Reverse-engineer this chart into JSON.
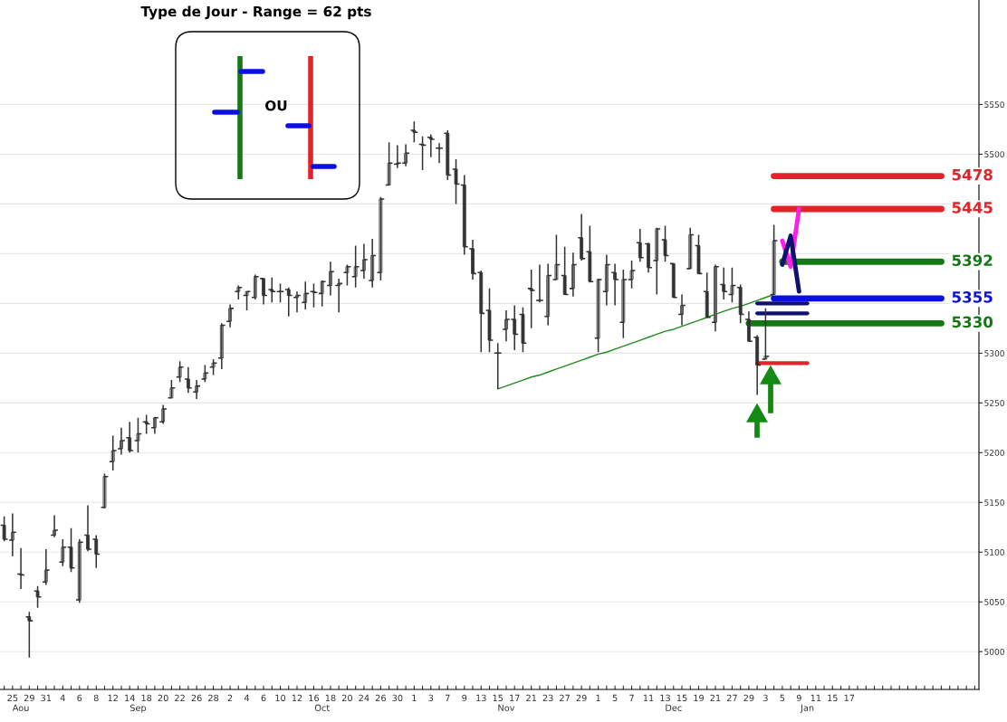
{
  "chart_data": {
    "type": "candlestick",
    "title": "Type de Jour - Range = 62 pts",
    "color": "#333333",
    "categories": [
      null,
      "25",
      "\nAou",
      "29",
      null,
      "31",
      null,
      "4",
      null,
      "6",
      null,
      "8",
      null,
      "12",
      null,
      "14",
      "\nSep",
      "18",
      null,
      "20",
      null,
      "22",
      null,
      "26",
      null,
      "28",
      null,
      "2",
      null,
      "4",
      null,
      "6",
      null,
      "10",
      null,
      "12",
      null,
      "16",
      "\nOct",
      "18",
      null,
      "20",
      null,
      "24",
      null,
      "26",
      null,
      "30",
      null,
      "1",
      null,
      "3",
      null,
      "7",
      null,
      "9",
      null,
      "13",
      null,
      "15",
      "\nNov",
      "17",
      null,
      "21",
      null,
      "23",
      null,
      "27",
      null,
      "29",
      null,
      "1",
      null,
      "5",
      null,
      "7",
      null,
      "11",
      null,
      "13",
      "\nDec",
      "15",
      null,
      "19",
      null,
      "21",
      null,
      "27",
      null,
      "29",
      null,
      "3",
      null,
      "5",
      null,
      "9",
      "\nJan",
      "11",
      null,
      "15",
      null,
      "17",
      null,
      null,
      null,
      null,
      null,
      null,
      null,
      null,
      null,
      null,
      null,
      null,
      null,
      null,
      null
    ],
    "ohlc": [
      [
        5127,
        5136,
        5111,
        5113
      ],
      [
        5112,
        5139,
        5096,
        5120
      ],
      [
        5078,
        5104,
        5063,
        5077
      ],
      [
        5035,
        5040,
        4994,
        5031
      ],
      [
        5061,
        5066,
        5044,
        5055
      ],
      [
        5070,
        5103,
        5067,
        5082
      ],
      [
        5117,
        5137,
        5115,
        5122
      ],
      [
        5090,
        5113,
        5086,
        5105
      ],
      [
        5105,
        5124,
        5080,
        5084
      ],
      [
        5052,
        5113,
        5049,
        5110
      ],
      [
        5117,
        5147,
        5101,
        5103
      ],
      [
        5113,
        5117,
        5084,
        5098
      ],
      [
        5145,
        5179,
        5144,
        5176
      ],
      [
        5191,
        5217,
        5182,
        5202
      ],
      [
        5204,
        5225,
        5198,
        5212
      ],
      [
        5215,
        5231,
        5200,
        5202
      ],
      [
        5212,
        5235,
        5200,
        5219
      ],
      [
        5231,
        5238,
        5219,
        5229
      ],
      [
        5225,
        5236,
        5219,
        5235
      ],
      [
        5231,
        5248,
        5229,
        5244
      ],
      [
        5255,
        5273,
        5255,
        5265
      ],
      [
        5276,
        5292,
        5271,
        5286
      ],
      [
        5274,
        5286,
        5260,
        5265
      ],
      [
        5261,
        5273,
        5254,
        5267
      ],
      [
        5274,
        5288,
        5271,
        5280
      ],
      [
        5286,
        5294,
        5278,
        5290
      ],
      [
        5295,
        5330,
        5284,
        5328
      ],
      [
        5332,
        5349,
        5326,
        5345
      ],
      [
        5362,
        5368,
        5354,
        5366
      ],
      [
        5358,
        5362,
        5343,
        5362
      ],
      [
        5356,
        5379,
        5354,
        5377
      ],
      [
        5375,
        5375,
        5349,
        5358
      ],
      [
        5364,
        5376,
        5351,
        5362
      ],
      [
        5362,
        5370,
        5351,
        5362
      ],
      [
        5364,
        5366,
        5337,
        5358
      ],
      [
        5356,
        5362,
        5341,
        5358
      ],
      [
        5351,
        5372,
        5344,
        5360
      ],
      [
        5362,
        5370,
        5346,
        5361
      ],
      [
        5360,
        5373,
        5347,
        5372
      ],
      [
        5368,
        5392,
        5358,
        5382
      ],
      [
        5368,
        5375,
        5341,
        5370
      ],
      [
        5381,
        5389,
        5368,
        5387
      ],
      [
        5377,
        5408,
        5366,
        5387
      ],
      [
        5383,
        5410,
        5375,
        5394
      ],
      [
        5373,
        5415,
        5366,
        5398
      ],
      [
        5381,
        5457,
        5373,
        5455
      ],
      [
        5469,
        5512,
        5469,
        5491
      ],
      [
        5490,
        5509,
        5486,
        5491
      ],
      [
        5491,
        5510,
        5488,
        5501
      ],
      [
        5524,
        5533,
        5512,
        5522
      ],
      [
        5510,
        5518,
        5484,
        5509
      ],
      [
        5517,
        5520,
        5497,
        5515
      ],
      [
        5506,
        5511,
        5491,
        5506
      ],
      [
        5521,
        5524,
        5474,
        5479
      ],
      [
        5485,
        5495,
        5450,
        5470
      ],
      [
        5469,
        5479,
        5399,
        5407
      ],
      [
        5405,
        5414,
        5374,
        5380
      ],
      [
        5381,
        5383,
        5301,
        5340
      ],
      [
        5343,
        5365,
        5301,
        5313
      ],
      [
        5300,
        5310,
        5264,
        5300
      ],
      [
        5324,
        5343,
        5312,
        5334
      ],
      [
        5334,
        5348,
        5303,
        5319
      ],
      [
        5339,
        5346,
        5301,
        5310
      ],
      [
        5365,
        5384,
        5325,
        5363
      ],
      [
        5353,
        5389,
        5351,
        5353
      ],
      [
        5337,
        5390,
        5328,
        5378
      ],
      [
        5374,
        5419,
        5374,
        5389
      ],
      [
        5378,
        5407,
        5359,
        5359
      ],
      [
        5365,
        5401,
        5357,
        5389
      ],
      [
        5416,
        5440,
        5393,
        5395
      ],
      [
        5402,
        5428,
        5371,
        5372
      ],
      [
        5315,
        5375,
        5301,
        5374
      ],
      [
        5362,
        5399,
        5348,
        5389
      ],
      [
        5381,
        5390,
        5348,
        5374
      ],
      [
        5331,
        5384,
        5315,
        5374
      ],
      [
        5374,
        5393,
        5365,
        5383
      ],
      [
        5411,
        5425,
        5392,
        5396
      ],
      [
        5410,
        5411,
        5381,
        5386
      ],
      [
        5393,
        5426,
        5359,
        5425
      ],
      [
        5414,
        5428,
        5392,
        5398
      ],
      [
        5390,
        5390,
        5356,
        5356
      ],
      [
        5339,
        5359,
        5328,
        5348
      ],
      [
        5385,
        5426,
        5385,
        5419
      ],
      [
        5408,
        5419,
        5380,
        5380
      ],
      [
        5362,
        5381,
        5336,
        5336
      ],
      [
        5331,
        5389,
        5322,
        5387
      ],
      [
        5369,
        5386,
        5354,
        5362
      ],
      [
        5359,
        5386,
        5351,
        5368
      ],
      [
        5366,
        5369,
        5330,
        5339
      ],
      [
        5334,
        5342,
        5312,
        5312
      ],
      [
        5316,
        5318,
        5258,
        5288
      ],
      [
        5294,
        5345,
        5294,
        5297
      ],
      [
        5359,
        5429,
        5359,
        5413
      ],
      null,
      null,
      null,
      null,
      null,
      null,
      null,
      null,
      null,
      null,
      null,
      null,
      null,
      null,
      null,
      null,
      null,
      null,
      null,
      null,
      null,
      null,
      null,
      null
    ],
    "ylim": [
      4962,
      5655
    ],
    "yticks": [
      5000,
      5050,
      5100,
      5150,
      5200,
      5250,
      5300,
      {
        "value": 5350,
        "label": null
      },
      {
        "value": 5400,
        "label": null
      },
      {
        "value": 5450,
        "label": null
      },
      5500,
      5550
    ],
    "grid": "y",
    "series": [
      {
        "type": "line",
        "color": "#1e8c1e",
        "values": [
          null,
          null,
          null,
          null,
          null,
          null,
          null,
          null,
          null,
          null,
          null,
          null,
          null,
          null,
          null,
          null,
          null,
          null,
          null,
          null,
          null,
          null,
          null,
          null,
          null,
          null,
          null,
          null,
          null,
          null,
          null,
          null,
          null,
          null,
          null,
          null,
          null,
          null,
          null,
          null,
          null,
          null,
          null,
          null,
          null,
          null,
          null,
          null,
          null,
          null,
          null,
          null,
          null,
          null,
          null,
          null,
          null,
          null,
          null,
          5264,
          5267,
          5270,
          5273,
          5276,
          5278,
          5281,
          5284,
          5287,
          5290,
          5293,
          5296,
          5299,
          5301,
          5304,
          5307,
          5310,
          5313,
          5316,
          5319,
          5322,
          5324,
          5327,
          5330,
          5333,
          5336,
          5339,
          5342,
          5345,
          5347,
          5350,
          5353,
          5356,
          5359,
          null,
          null,
          null,
          null,
          null,
          null,
          null,
          null,
          null,
          null,
          null,
          null,
          null,
          null,
          null,
          null,
          null,
          null,
          null,
          null,
          null,
          null,
          null,
          null
        ]
      },
      {
        "type": "line",
        "name": "5478",
        "color": "#e2232a",
        "values": [
          null,
          null,
          null,
          null,
          null,
          null,
          null,
          null,
          null,
          null,
          null,
          null,
          null,
          null,
          null,
          null,
          null,
          null,
          null,
          null,
          null,
          null,
          null,
          null,
          null,
          null,
          null,
          null,
          null,
          null,
          null,
          null,
          null,
          null,
          null,
          null,
          null,
          null,
          null,
          null,
          null,
          null,
          null,
          null,
          null,
          null,
          null,
          null,
          null,
          null,
          null,
          null,
          null,
          null,
          null,
          null,
          null,
          null,
          null,
          null,
          null,
          null,
          null,
          null,
          null,
          null,
          null,
          null,
          null,
          null,
          null,
          null,
          null,
          null,
          null,
          null,
          null,
          null,
          null,
          null,
          null,
          null,
          null,
          null,
          null,
          null,
          null,
          null,
          null,
          null,
          null,
          null,
          5478,
          5478,
          5478,
          5478,
          5478,
          5478,
          5478,
          5478,
          5478,
          5478,
          5478,
          5478,
          5478,
          5478,
          5478,
          5478,
          5478,
          5478,
          5478,
          5478,
          5478,
          null,
          null,
          null,
          null
        ]
      },
      {
        "type": "line",
        "name": "5445",
        "color": "#e2232a",
        "values": [
          null,
          null,
          null,
          null,
          null,
          null,
          null,
          null,
          null,
          null,
          null,
          null,
          null,
          null,
          null,
          null,
          null,
          null,
          null,
          null,
          null,
          null,
          null,
          null,
          null,
          null,
          null,
          null,
          null,
          null,
          null,
          null,
          null,
          null,
          null,
          null,
          null,
          null,
          null,
          null,
          null,
          null,
          null,
          null,
          null,
          null,
          null,
          null,
          null,
          null,
          null,
          null,
          null,
          null,
          null,
          null,
          null,
          null,
          null,
          null,
          null,
          null,
          null,
          null,
          null,
          null,
          null,
          null,
          null,
          null,
          null,
          null,
          null,
          null,
          null,
          null,
          null,
          null,
          null,
          null,
          null,
          null,
          null,
          null,
          null,
          null,
          null,
          null,
          null,
          null,
          null,
          null,
          5445,
          5445,
          5445,
          5445,
          5445,
          5445,
          5445,
          5445,
          5445,
          5445,
          5445,
          5445,
          5445,
          5445,
          5445,
          5445,
          5445,
          5445,
          5445,
          5445,
          5445,
          null,
          null,
          null,
          null
        ]
      },
      {
        "type": "line",
        "name": "5392",
        "color": "#137a13",
        "values": [
          null,
          null,
          null,
          null,
          null,
          null,
          null,
          null,
          null,
          null,
          null,
          null,
          null,
          null,
          null,
          null,
          null,
          null,
          null,
          null,
          null,
          null,
          null,
          null,
          null,
          null,
          null,
          null,
          null,
          null,
          null,
          null,
          null,
          null,
          null,
          null,
          null,
          null,
          null,
          null,
          null,
          null,
          null,
          null,
          null,
          null,
          null,
          null,
          null,
          null,
          null,
          null,
          null,
          null,
          null,
          null,
          null,
          null,
          null,
          null,
          null,
          null,
          null,
          null,
          null,
          null,
          null,
          null,
          null,
          null,
          null,
          null,
          null,
          null,
          null,
          null,
          null,
          null,
          null,
          null,
          null,
          null,
          null,
          null,
          null,
          null,
          null,
          null,
          null,
          null,
          null,
          null,
          null,
          5392,
          5392,
          5392,
          5392,
          5392,
          5392,
          5392,
          5392,
          5392,
          5392,
          5392,
          5392,
          5392,
          5392,
          5392,
          5392,
          5392,
          5392,
          5392,
          5392,
          null,
          null,
          null,
          null
        ]
      },
      {
        "type": "line",
        "name": "5355",
        "color": "#0b10e0",
        "values": [
          null,
          null,
          null,
          null,
          null,
          null,
          null,
          null,
          null,
          null,
          null,
          null,
          null,
          null,
          null,
          null,
          null,
          null,
          null,
          null,
          null,
          null,
          null,
          null,
          null,
          null,
          null,
          null,
          null,
          null,
          null,
          null,
          null,
          null,
          null,
          null,
          null,
          null,
          null,
          null,
          null,
          null,
          null,
          null,
          null,
          null,
          null,
          null,
          null,
          null,
          null,
          null,
          null,
          null,
          null,
          null,
          null,
          null,
          null,
          null,
          null,
          null,
          null,
          null,
          null,
          null,
          null,
          null,
          null,
          null,
          null,
          null,
          null,
          null,
          null,
          null,
          null,
          null,
          null,
          null,
          null,
          null,
          null,
          null,
          null,
          null,
          null,
          null,
          null,
          null,
          null,
          null,
          5355,
          5355,
          5355,
          5355,
          5355,
          5355,
          5355,
          5355,
          5355,
          5355,
          5355,
          5355,
          5355,
          5355,
          5355,
          5355,
          5355,
          5355,
          5355,
          5355,
          5355,
          null,
          null,
          null,
          null
        ]
      },
      {
        "type": "line",
        "name": "5330",
        "color": "#137a13",
        "values": [
          null,
          null,
          null,
          null,
          null,
          null,
          null,
          null,
          null,
          null,
          null,
          null,
          null,
          null,
          null,
          null,
          null,
          null,
          null,
          null,
          null,
          null,
          null,
          null,
          null,
          null,
          null,
          null,
          null,
          null,
          null,
          null,
          null,
          null,
          null,
          null,
          null,
          null,
          null,
          null,
          null,
          null,
          null,
          null,
          null,
          null,
          null,
          null,
          null,
          null,
          null,
          null,
          null,
          null,
          null,
          null,
          null,
          null,
          null,
          null,
          null,
          null,
          null,
          null,
          null,
          null,
          null,
          null,
          null,
          null,
          null,
          null,
          null,
          null,
          null,
          null,
          null,
          null,
          null,
          null,
          null,
          null,
          null,
          null,
          null,
          null,
          null,
          null,
          null,
          5330,
          5330,
          5330,
          5330,
          5330,
          5330,
          5330,
          5330,
          5330,
          5330,
          5330,
          5330,
          5330,
          5330,
          5330,
          5330,
          5330,
          5330,
          5330,
          5330,
          5330,
          5330,
          5330,
          5330,
          null,
          null,
          null,
          null
        ]
      },
      {
        "type": "line",
        "color": "#10106e",
        "values": [
          null,
          null,
          null,
          null,
          null,
          null,
          null,
          null,
          null,
          null,
          null,
          null,
          null,
          null,
          null,
          null,
          null,
          null,
          null,
          null,
          null,
          null,
          null,
          null,
          null,
          null,
          null,
          null,
          null,
          null,
          null,
          null,
          null,
          null,
          null,
          null,
          null,
          null,
          null,
          null,
          null,
          null,
          null,
          null,
          null,
          null,
          null,
          null,
          null,
          null,
          null,
          null,
          null,
          null,
          null,
          null,
          null,
          null,
          null,
          null,
          null,
          null,
          null,
          null,
          null,
          null,
          null,
          null,
          null,
          null,
          null,
          null,
          null,
          null,
          null,
          null,
          null,
          null,
          null,
          null,
          null,
          null,
          null,
          null,
          null,
          null,
          null,
          null,
          null,
          null,
          5350,
          5350,
          5350,
          5350,
          5350,
          5350,
          5350,
          null,
          null,
          null,
          null,
          null,
          null,
          null,
          null,
          null,
          null,
          null,
          null,
          null,
          null,
          null,
          null,
          null,
          null,
          null,
          null
        ]
      },
      {
        "type": "line",
        "color": "#10106e",
        "values": [
          null,
          null,
          null,
          null,
          null,
          null,
          null,
          null,
          null,
          null,
          null,
          null,
          null,
          null,
          null,
          null,
          null,
          null,
          null,
          null,
          null,
          null,
          null,
          null,
          null,
          null,
          null,
          null,
          null,
          null,
          null,
          null,
          null,
          null,
          null,
          null,
          null,
          null,
          null,
          null,
          null,
          null,
          null,
          null,
          null,
          null,
          null,
          null,
          null,
          null,
          null,
          null,
          null,
          null,
          null,
          null,
          null,
          null,
          null,
          null,
          null,
          null,
          null,
          null,
          null,
          null,
          null,
          null,
          null,
          null,
          null,
          null,
          null,
          null,
          null,
          null,
          null,
          null,
          null,
          null,
          null,
          null,
          null,
          null,
          null,
          null,
          null,
          null,
          null,
          null,
          5340,
          5340,
          5340,
          5340,
          5340,
          5340,
          5340,
          null,
          null,
          null,
          null,
          null,
          null,
          null,
          null,
          null,
          null,
          null,
          null,
          null,
          null,
          null,
          null,
          null,
          null,
          null,
          null
        ]
      },
      {
        "type": "line",
        "color": "#e2232a",
        "values": [
          null,
          null,
          null,
          null,
          null,
          null,
          null,
          null,
          null,
          null,
          null,
          null,
          null,
          null,
          null,
          null,
          null,
          null,
          null,
          null,
          null,
          null,
          null,
          null,
          null,
          null,
          null,
          null,
          null,
          null,
          null,
          null,
          null,
          null,
          null,
          null,
          null,
          null,
          null,
          null,
          null,
          null,
          null,
          null,
          null,
          null,
          null,
          null,
          null,
          null,
          null,
          null,
          null,
          null,
          null,
          null,
          null,
          null,
          null,
          null,
          null,
          null,
          null,
          null,
          null,
          null,
          null,
          null,
          null,
          null,
          null,
          null,
          null,
          null,
          null,
          null,
          null,
          null,
          null,
          null,
          null,
          null,
          null,
          null,
          null,
          null,
          null,
          null,
          null,
          null,
          5290,
          5290,
          5290,
          5290,
          5290,
          5290,
          5290,
          null,
          null,
          null,
          null,
          null,
          null,
          null,
          null,
          null,
          null,
          null,
          null,
          null,
          null,
          null,
          null,
          null,
          null,
          null,
          null
        ]
      },
      {
        "type": "line",
        "color": "#ff1fe6",
        "values": [
          null,
          null,
          null,
          null,
          null,
          null,
          null,
          null,
          null,
          null,
          null,
          null,
          null,
          null,
          null,
          null,
          null,
          null,
          null,
          null,
          null,
          null,
          null,
          null,
          null,
          null,
          null,
          null,
          null,
          null,
          null,
          null,
          null,
          null,
          null,
          null,
          null,
          null,
          null,
          null,
          null,
          null,
          null,
          null,
          null,
          null,
          null,
          null,
          null,
          null,
          null,
          null,
          null,
          null,
          null,
          null,
          null,
          null,
          null,
          null,
          null,
          null,
          null,
          null,
          null,
          null,
          null,
          null,
          null,
          null,
          null,
          null,
          null,
          null,
          null,
          null,
          null,
          null,
          null,
          null,
          null,
          null,
          null,
          null,
          null,
          null,
          null,
          null,
          null,
          null,
          null,
          null,
          null,
          5413,
          5387,
          5445,
          null,
          null,
          null,
          null,
          null,
          null,
          null,
          null,
          null,
          null,
          null,
          null,
          null,
          null,
          null,
          null,
          null,
          null,
          null,
          null,
          null
        ]
      },
      {
        "type": "line",
        "color": "#10106e",
        "values": [
          null,
          null,
          null,
          null,
          null,
          null,
          null,
          null,
          null,
          null,
          null,
          null,
          null,
          null,
          null,
          null,
          null,
          null,
          null,
          null,
          null,
          null,
          null,
          null,
          null,
          null,
          null,
          null,
          null,
          null,
          null,
          null,
          null,
          null,
          null,
          null,
          null,
          null,
          null,
          null,
          null,
          null,
          null,
          null,
          null,
          null,
          null,
          null,
          null,
          null,
          null,
          null,
          null,
          null,
          null,
          null,
          null,
          null,
          null,
          null,
          null,
          null,
          null,
          null,
          null,
          null,
          null,
          null,
          null,
          null,
          null,
          null,
          null,
          null,
          null,
          null,
          null,
          null,
          null,
          null,
          null,
          null,
          null,
          null,
          null,
          null,
          null,
          null,
          null,
          null,
          null,
          null,
          null,
          5389,
          5418,
          5362,
          null,
          null,
          null,
          null,
          null,
          null,
          null,
          null,
          null,
          null,
          null,
          null,
          null,
          null,
          null,
          null,
          null,
          null,
          null,
          null,
          null
        ]
      }
    ],
    "annotations": [
      "OU"
    ]
  }
}
